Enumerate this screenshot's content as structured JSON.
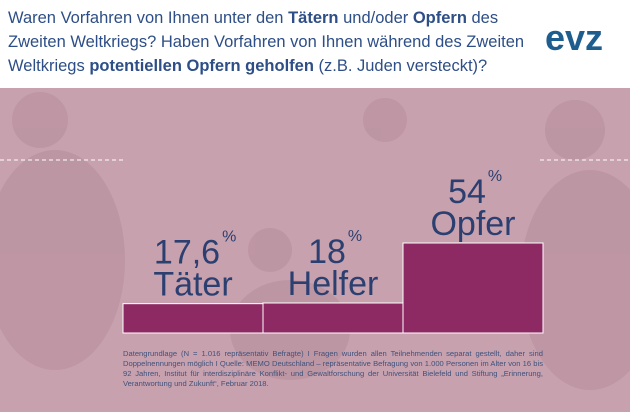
{
  "title": [
    {
      "text": "Waren Vorfahren von Ihnen unter den ",
      "bold": false
    },
    {
      "text": "Tätern",
      "bold": true
    },
    {
      "text": " und/oder ",
      "bold": false
    },
    {
      "text": "Opfern",
      "bold": true
    },
    {
      "text": " des Zweiten Weltkriegs? Haben Vorfahren von Ihnen während des Zweiten Weltkriegs ",
      "bold": false
    },
    {
      "text": "potentiellen Opfern geholfen",
      "bold": true
    },
    {
      "text": " (z.B. Juden versteckt)?",
      "bold": false
    }
  ],
  "logo": "evz",
  "chart_data": {
    "type": "bar",
    "categories": [
      "Täter",
      "Helfer",
      "Opfer"
    ],
    "values": [
      17.6,
      18,
      54
    ],
    "value_labels": [
      "17,6",
      "18",
      "54"
    ],
    "unit": "%",
    "color": "#8e2a63",
    "ylim": [
      0,
      60
    ]
  },
  "footnote": "Datengrundlage (N = 1.016 repräsentativ Befragte) I Fragen wurden allen Teilnehmenden separat gestellt, daher sind Doppelnennungen möglich I Quelle: MEMO Deutschland – repräsentative Befragung von 1.000 Personen im Alter von 16 bis 92 Jahren, Institut für interdisziplinäre Konflikt- und Gewaltforschung der Universität Bielefeld und Stiftung „Erinnerung, Verantwortung und Zukunft“, Februar 2018."
}
